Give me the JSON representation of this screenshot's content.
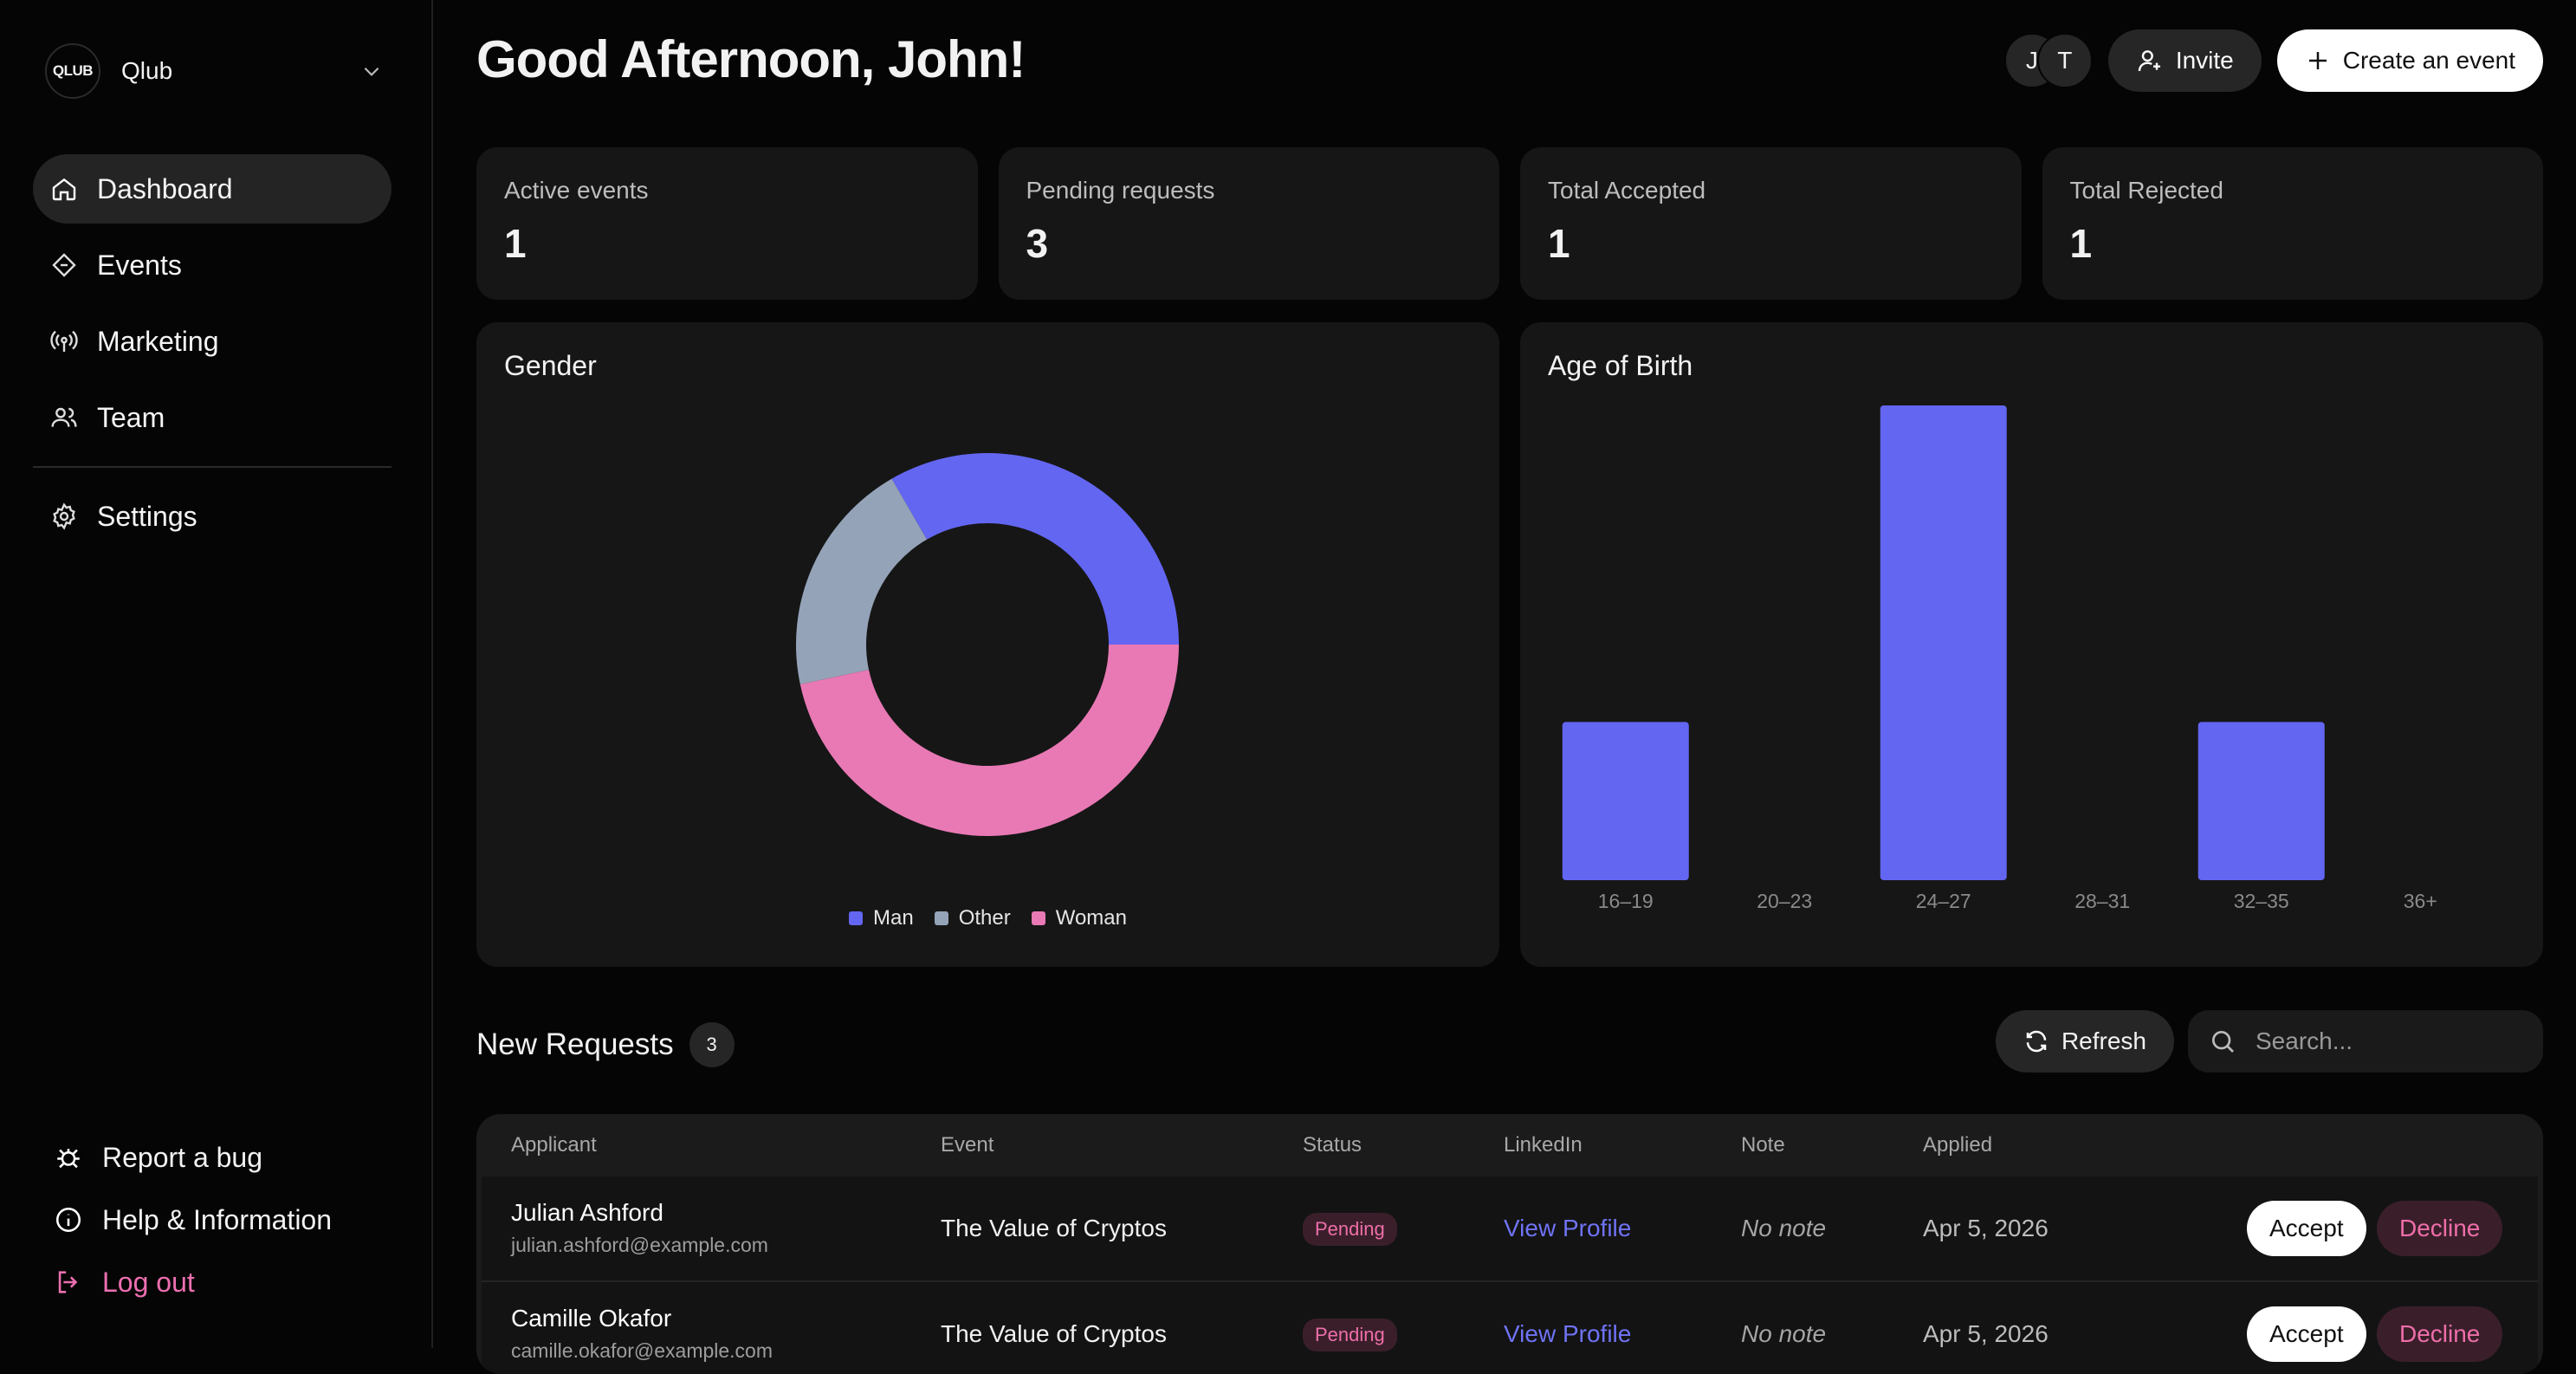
{
  "brand": {
    "logo_text": "QLUB",
    "name": "Qlub"
  },
  "nav": {
    "items": [
      {
        "label": "Dashboard"
      },
      {
        "label": "Events"
      },
      {
        "label": "Marketing"
      },
      {
        "label": "Team"
      }
    ],
    "settings": "Settings"
  },
  "bottom_links": {
    "report": "Report a bug",
    "help": "Help & Information",
    "logout": "Log out"
  },
  "header": {
    "greeting": "Good Afternoon, John!",
    "avatars": [
      "J",
      "T"
    ],
    "invite": "Invite",
    "create": "Create an event"
  },
  "stats": [
    {
      "label": "Active events",
      "value": "1"
    },
    {
      "label": "Pending requests",
      "value": "3"
    },
    {
      "label": "Total Accepted",
      "value": "1"
    },
    {
      "label": "Total Rejected",
      "value": "1"
    }
  ],
  "chart_data": [
    {
      "type": "pie",
      "title": "Gender",
      "labels": [
        "Man",
        "Other",
        "Woman"
      ],
      "values": [
        1,
        0.6,
        1.4
      ],
      "colors": [
        "#6366f1",
        "#94a3b8",
        "#e879b4"
      ],
      "legend_position": "bottom"
    },
    {
      "type": "bar",
      "title": "Age of Birth",
      "categories": [
        "16–19",
        "20–23",
        "24–27",
        "28–31",
        "32–35",
        "36+"
      ],
      "values": [
        1,
        0,
        3,
        0,
        1,
        0
      ],
      "ylim": [
        0,
        3
      ],
      "color": "#6366f1",
      "grid": false
    }
  ],
  "requests": {
    "title": "New Requests",
    "count": "3",
    "refresh": "Refresh",
    "search_placeholder": "Search...",
    "columns": [
      "Applicant",
      "Event",
      "Status",
      "LinkedIn",
      "Note",
      "Applied"
    ],
    "rows": [
      {
        "name": "Julian Ashford",
        "email": "julian.ashford@example.com",
        "event": "The Value of Cryptos",
        "status": "Pending",
        "linkedin": "View Profile",
        "note": "No note",
        "applied": "Apr 5, 2026",
        "accept": "Accept",
        "decline": "Decline"
      },
      {
        "name": "Camille Okafor",
        "email": "camille.okafor@example.com",
        "event": "The Value of Cryptos",
        "status": "Pending",
        "linkedin": "View Profile",
        "note": "No note",
        "applied": "Apr 5, 2026",
        "accept": "Accept",
        "decline": "Decline"
      }
    ]
  }
}
